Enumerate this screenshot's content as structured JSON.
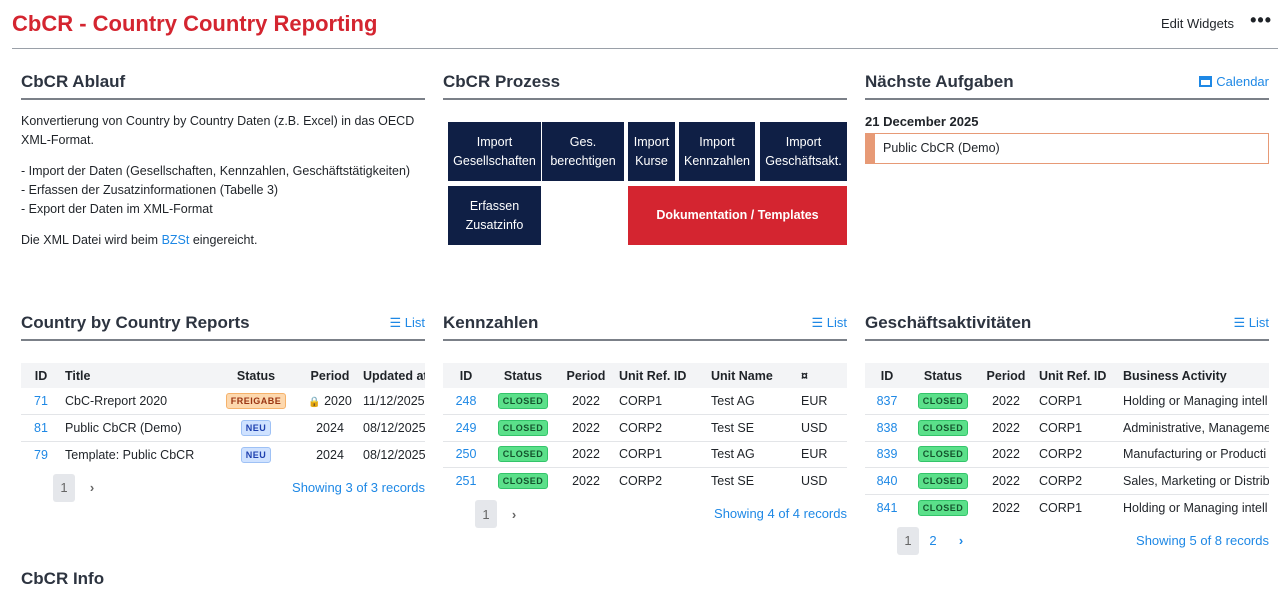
{
  "header": {
    "title": "CbCR - Country Country Reporting",
    "edit_widgets": "Edit Widgets",
    "more_icon": "ellipsis-icon"
  },
  "ablauf": {
    "title": "CbCR Ablauf",
    "p1": "Konvertierung von Country by Country Daten (z.B. Excel) in das OECD XML-Format.",
    "list": [
      "- Import der Daten (Gesellschaften, Kennzahlen, Geschäftstätigkeiten)",
      "- Erfassen der Zusatzinformationen (Tabelle 3)",
      "- Export der Daten im XML-Format"
    ],
    "p3_before": "Die XML Datei wird beim ",
    "p3_link": "BZSt",
    "p3_after": " eingereicht."
  },
  "prozess": {
    "title": "CbCR Prozess",
    "buttons": [
      [
        "Import",
        "Gesellschaften"
      ],
      [
        "Ges.",
        "berechtigen"
      ],
      [
        "Import",
        "Kurse"
      ],
      [
        "Import",
        "Kennzahlen"
      ],
      [
        "Import",
        "Geschäftsakt."
      ],
      [
        "Erfassen",
        "Zusatzinfo"
      ]
    ],
    "doc": "Dokumentation / Templates",
    "colors": {
      "primary": "#0f1f45",
      "accent": "#d42530"
    }
  },
  "aufgaben": {
    "title": "Nächste Aufgaben",
    "calendar": "Calendar",
    "date": "21 December 2025",
    "task": "Public CbCR (Demo)"
  },
  "reports": {
    "title": "Country by Country Reports",
    "list": "List",
    "columns": [
      "ID",
      "Title",
      "Status",
      "Period",
      "Updated at"
    ],
    "rows": [
      {
        "id": "71",
        "title": "CbC-Rreport 2020",
        "status": "FREIGABE",
        "period": "2020",
        "locked": true,
        "updated": "11/12/2025, 1"
      },
      {
        "id": "81",
        "title": "Public CbCR (Demo)",
        "status": "NEU",
        "period": "2024",
        "updated": "08/12/2025,"
      },
      {
        "id": "79",
        "title": "Template: Public CbCR",
        "status": "NEU",
        "period": "2024",
        "updated": "08/12/2025,"
      }
    ],
    "page": "1",
    "showing": "Showing 3 of 3 records"
  },
  "kennzahlen": {
    "title": "Kennzahlen",
    "list": "List",
    "columns": [
      "ID",
      "Status",
      "Period",
      "Unit Ref. ID",
      "Unit Name",
      "¤"
    ],
    "rows": [
      [
        "248",
        "CLOSED",
        "2022",
        "CORP1",
        "Test AG",
        "EUR"
      ],
      [
        "249",
        "CLOSED",
        "2022",
        "CORP2",
        "Test SE",
        "USD"
      ],
      [
        "250",
        "CLOSED",
        "2022",
        "CORP1",
        "Test AG",
        "EUR"
      ],
      [
        "251",
        "CLOSED",
        "2022",
        "CORP2",
        "Test SE",
        "USD"
      ]
    ],
    "page": "1",
    "showing": "Showing 4 of 4 records"
  },
  "aktivitaeten": {
    "title": "Geschäftsaktivitäten",
    "list": "List",
    "columns": [
      "ID",
      "Status",
      "Period",
      "Unit Ref. ID",
      "Business Activity"
    ],
    "rows": [
      [
        "837",
        "CLOSED",
        "2022",
        "CORP1",
        "Holding or Managing intell"
      ],
      [
        "838",
        "CLOSED",
        "2022",
        "CORP1",
        "Administrative, Manageme"
      ],
      [
        "839",
        "CLOSED",
        "2022",
        "CORP2",
        "Manufacturing or Producti"
      ],
      [
        "840",
        "CLOSED",
        "2022",
        "CORP2",
        "Sales, Marketing or Distrib"
      ],
      [
        "841",
        "CLOSED",
        "2022",
        "CORP1",
        "Holding or Managing intell"
      ]
    ],
    "pages": [
      "1",
      "2"
    ],
    "showing": "Showing 5 of 8 records"
  },
  "next_section": {
    "title": "CbCR Info"
  }
}
